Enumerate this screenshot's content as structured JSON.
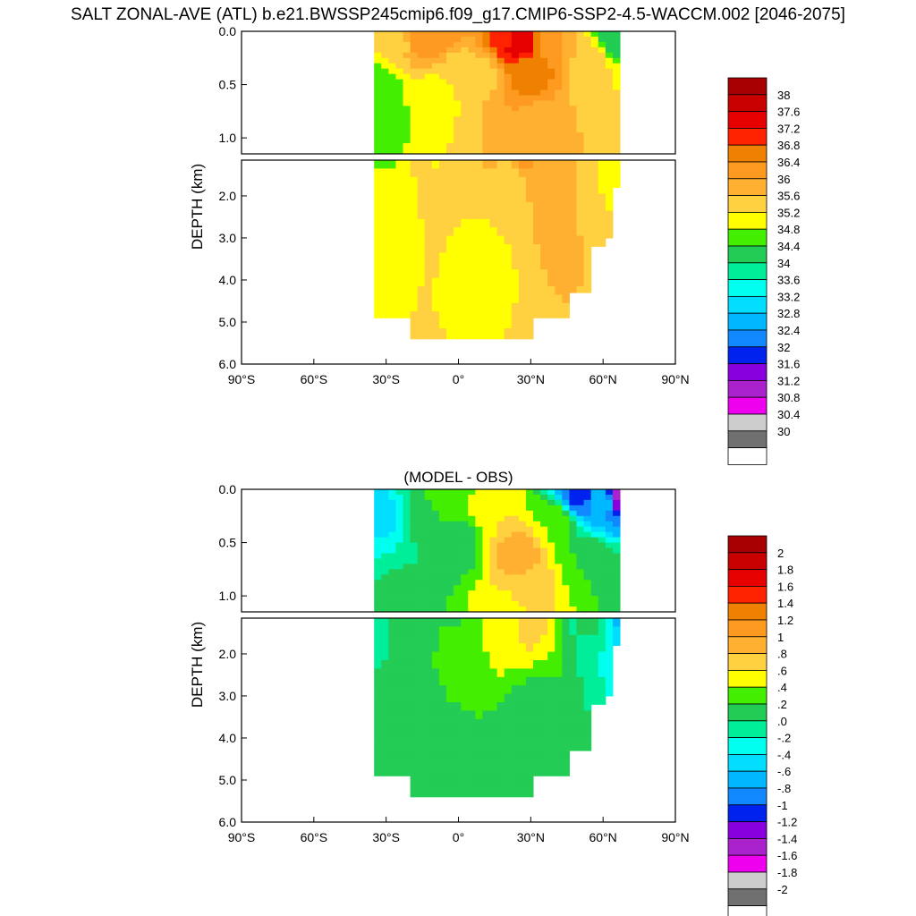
{
  "title": "SALT ZONAL-AVE (ATL) b.e21.BWSSP245cmip6.f09_g17.CMIP6-SSP2-4.5-WACCM.002 [2046-2075]",
  "chart_data": [
    {
      "type": "heatmap",
      "title": "",
      "ylabel": "DEPTH (km)",
      "x_tick_labels": [
        "90°S",
        "60°S",
        "30°S",
        "0°",
        "30°N",
        "60°N",
        "90°N"
      ],
      "x_ticks": [
        -90,
        -60,
        -30,
        0,
        30,
        60,
        90
      ],
      "y_upper_tick_labels": [
        "0.0",
        "0.5",
        "1.0"
      ],
      "y_upper_ticks": [
        0.0,
        0.5,
        1.0
      ],
      "y_lower_tick_labels": [
        "2.0",
        "3.0",
        "4.0",
        "5.0",
        "6.0"
      ],
      "y_lower_ticks": [
        2.0,
        3.0,
        4.0,
        5.0,
        6.0
      ],
      "xlim": [
        -90,
        90
      ],
      "ylim_upper": [
        0,
        1.15
      ],
      "ylim_lower": [
        1.15,
        6.0
      ],
      "colorbar": {
        "labels": [
          "38",
          "37.6",
          "37.2",
          "36.8",
          "36.4",
          "36",
          "35.6",
          "35.2",
          "34.8",
          "34.4",
          "34",
          "33.6",
          "33.2",
          "32.8",
          "32.4",
          "32",
          "31.6",
          "31.2",
          "30.8",
          "30.4",
          "30"
        ],
        "colors": [
          "#a80000",
          "#c80000",
          "#e60000",
          "#ff2200",
          "#f08000",
          "#ff9a20",
          "#ffb030",
          "#ffd040",
          "#ffff00",
          "#44ee00",
          "#22cc55",
          "#00ee99",
          "#00ffee",
          "#00ddff",
          "#00b8ff",
          "#1188ff",
          "#0022ee",
          "#8800dd",
          "#aa22cc",
          "#ee00ee",
          "#cccccc",
          "#707070",
          "#ffffff"
        ]
      },
      "fields": [
        {
          "x": -33,
          "y": 0.5,
          "v": 34.6
        },
        {
          "x": -33,
          "y": 1.0,
          "v": 34.8
        },
        {
          "x": -33,
          "y": 2.0,
          "v": 35.0
        },
        {
          "x": -25,
          "y": 0.1,
          "v": 35.5
        },
        {
          "x": -15,
          "y": 0.05,
          "v": 36.4
        },
        {
          "x": -5,
          "y": 0.05,
          "v": 36.2
        },
        {
          "x": 0,
          "y": 0.3,
          "v": 35.4
        },
        {
          "x": 10,
          "y": 0.4,
          "v": 35.5
        },
        {
          "x": 20,
          "y": 0.05,
          "v": 37.0
        },
        {
          "x": 25,
          "y": 0.1,
          "v": 37.6
        },
        {
          "x": 30,
          "y": 0.35,
          "v": 36.6
        },
        {
          "x": 35,
          "y": 0.9,
          "v": 35.8
        },
        {
          "x": 20,
          "y": 1.8,
          "v": 35.3
        },
        {
          "x": 40,
          "y": 0.1,
          "v": 36.0
        },
        {
          "x": 55,
          "y": 0.3,
          "v": 35.4
        },
        {
          "x": 62,
          "y": 0.6,
          "v": 35.2
        },
        {
          "x": 66,
          "y": 0.05,
          "v": 34.0
        },
        {
          "x": 10,
          "y": 3.5,
          "v": 35.0
        },
        {
          "x": -10,
          "y": 0.6,
          "v": 35.0
        },
        {
          "x": -30,
          "y": 0.8,
          "v": 34.7
        }
      ]
    },
    {
      "type": "heatmap",
      "title": "(MODEL - OBS)",
      "ylabel": "DEPTH (km)",
      "x_tick_labels": [
        "90°S",
        "60°S",
        "30°S",
        "0°",
        "30°N",
        "60°N",
        "90°N"
      ],
      "x_ticks": [
        -90,
        -60,
        -30,
        0,
        30,
        60,
        90
      ],
      "y_upper_tick_labels": [
        "0.0",
        "0.5",
        "1.0"
      ],
      "y_upper_ticks": [
        0.0,
        0.5,
        1.0
      ],
      "y_lower_tick_labels": [
        "2.0",
        "3.0",
        "4.0",
        "5.0",
        "6.0"
      ],
      "y_lower_ticks": [
        2.0,
        3.0,
        4.0,
        5.0,
        6.0
      ],
      "xlim": [
        -90,
        90
      ],
      "ylim_upper": [
        0,
        1.15
      ],
      "ylim_lower": [
        1.15,
        6.0
      ],
      "colorbar": {
        "labels": [
          "2",
          "1.8",
          "1.6",
          "1.4",
          "1.2",
          "1",
          ".8",
          ".6",
          ".4",
          ".2",
          ".0",
          "-.2",
          "-.4",
          "-.6",
          "-.8",
          "-1",
          "-1.2",
          "-1.4",
          "-1.6",
          "-1.8",
          "-2"
        ],
        "colors": [
          "#a80000",
          "#c80000",
          "#e60000",
          "#ff2200",
          "#f08000",
          "#ff9a20",
          "#ffb030",
          "#ffd040",
          "#ffff00",
          "#44ee00",
          "#22cc55",
          "#00ee99",
          "#00ffee",
          "#00ddff",
          "#00b8ff",
          "#1188ff",
          "#0022ee",
          "#8800dd",
          "#aa22cc",
          "#ee00ee",
          "#cccccc",
          "#707070",
          "#ffffff"
        ]
      },
      "fields": [
        {
          "x": -33,
          "y": 0.3,
          "v": -0.55
        },
        {
          "x": -30,
          "y": 0.6,
          "v": -0.2
        },
        {
          "x": -25,
          "y": 0.9,
          "v": 0.1
        },
        {
          "x": -15,
          "y": 0.3,
          "v": 0.05
        },
        {
          "x": -5,
          "y": 0.1,
          "v": 0.3
        },
        {
          "x": 0,
          "y": 0.5,
          "v": 0.1
        },
        {
          "x": 15,
          "y": 0.2,
          "v": 0.6
        },
        {
          "x": 25,
          "y": 0.6,
          "v": 0.9
        },
        {
          "x": 30,
          "y": 0.95,
          "v": 0.7
        },
        {
          "x": 20,
          "y": 1.2,
          "v": 0.5
        },
        {
          "x": 40,
          "y": 0.3,
          "v": 0.4
        },
        {
          "x": 50,
          "y": 0.05,
          "v": -1.1
        },
        {
          "x": 60,
          "y": 0.1,
          "v": -0.6
        },
        {
          "x": 66,
          "y": 0.05,
          "v": -1.5
        },
        {
          "x": 55,
          "y": 0.7,
          "v": 0.2
        },
        {
          "x": 0,
          "y": 2.0,
          "v": 0.25
        },
        {
          "x": -20,
          "y": 3.0,
          "v": 0.15
        },
        {
          "x": 30,
          "y": 3.5,
          "v": 0.1
        },
        {
          "x": -10,
          "y": 4.5,
          "v": 0.05
        },
        {
          "x": 20,
          "y": 4.8,
          "v": 0.12
        }
      ]
    }
  ]
}
